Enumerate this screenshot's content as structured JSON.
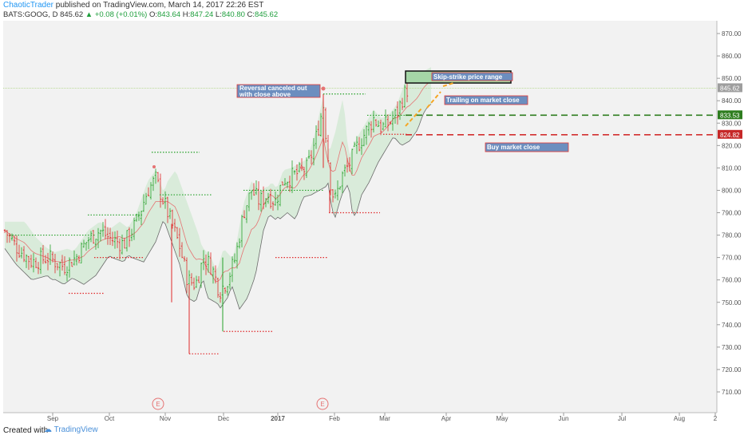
{
  "header": {
    "author": "ChaoticTrader",
    "published": "published on TradingView.com, March 14, 2017 22:26 EST",
    "symbol": "BATS:GOOG, D",
    "last": "845.62",
    "change": "▲ +0.08 (+0.01%)",
    "o_label": "O:",
    "o_value": "843.64",
    "h_label": "H:",
    "h_value": "847.24",
    "l_label": "L:",
    "l_value": "840.80",
    "c_label": "C:",
    "c_value": "845.62"
  },
  "footer": {
    "created": "Created with",
    "brand": "TradingView"
  },
  "colors": {
    "up": "#26a12a",
    "down": "#e0292b",
    "green_line": "#2e7d1f",
    "red_line": "#d32f2f",
    "orange": "#f5a623",
    "band_fill": "#c8e6c9",
    "ann_fill": "#6c8ebf",
    "ann_border": "#e53935"
  },
  "annotations": {
    "reversal": "Reversal canceled out with close above",
    "reversal_line1": "Reversal canceled out",
    "reversal_line2": "with close above",
    "skip_strike": "Skip-strike price range",
    "trailing": "Trailing on market close",
    "buy_close": "Buy market close",
    "earnings_marker": "E"
  },
  "chart_data": {
    "type": "candlestick",
    "symbol": "BATS:GOOG",
    "interval": "D",
    "ylim": [
      702,
      876
    ],
    "y_ticks": [
      "870.00",
      "860.00",
      "850.00",
      "840.00",
      "830.00",
      "820.00",
      "810.00",
      "800.00",
      "790.00",
      "780.00",
      "770.00",
      "760.00",
      "750.00",
      "740.00",
      "730.00",
      "720.00",
      "710.00"
    ],
    "x_labels": [
      "Sep",
      "Oct",
      "Nov",
      "Dec",
      "2017",
      "Feb",
      "Mar",
      "Apr",
      "May",
      "Jun",
      "Jul",
      "Aug",
      "2"
    ],
    "price_tags": [
      {
        "value": 845.62,
        "label": "845.62",
        "color": "gray"
      },
      {
        "value": 833.53,
        "label": "833.53",
        "color": "green"
      },
      {
        "value": 824.82,
        "label": "824.82",
        "color": "red"
      }
    ],
    "horizontal_levels": [
      {
        "name": "green-dashed",
        "value": 833.53
      },
      {
        "name": "red-dashed",
        "value": 824.82
      }
    ],
    "earnings_events": [
      "Nov",
      "Feb"
    ],
    "last_close": 845.62
  }
}
